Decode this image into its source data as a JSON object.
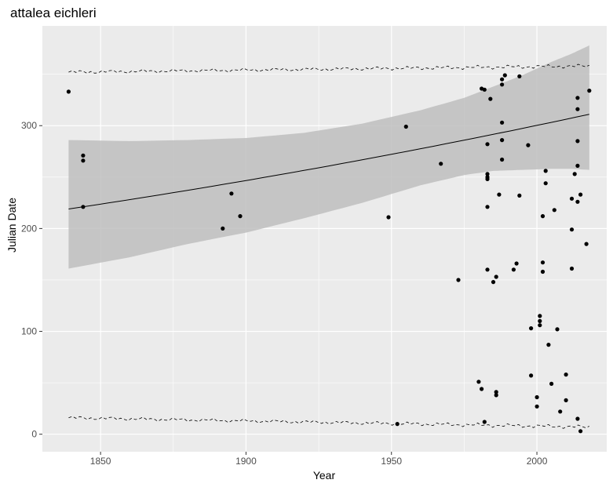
{
  "chart_data": {
    "type": "scatter",
    "title": "attalea eichleri",
    "xlabel": "Year",
    "ylabel": "Julian Date",
    "xlim": [
      1830,
      2024
    ],
    "ylim": [
      -17,
      397
    ],
    "x_ticks": [
      1850,
      1900,
      1950,
      2000
    ],
    "y_ticks": [
      0,
      100,
      200,
      300
    ],
    "grid": true,
    "legend": "none",
    "colors": {
      "panel": "#ebebeb",
      "grid": "#ffffff",
      "points": "#000000",
      "ribbon": "#bebebe",
      "tick_text": "#4d4d4d"
    },
    "points": [
      [
        1839,
        333
      ],
      [
        1844,
        271
      ],
      [
        1844,
        266
      ],
      [
        1844,
        221
      ],
      [
        1892,
        200
      ],
      [
        1895,
        234
      ],
      [
        1898,
        212
      ],
      [
        1949,
        211
      ],
      [
        1952,
        10
      ],
      [
        1955,
        299
      ],
      [
        1967,
        263
      ],
      [
        1973,
        150
      ],
      [
        1980,
        51
      ],
      [
        1981,
        44
      ],
      [
        1981,
        336
      ],
      [
        1982,
        335
      ],
      [
        1982,
        12
      ],
      [
        1983,
        282
      ],
      [
        1983,
        221
      ],
      [
        1983,
        253
      ],
      [
        1983,
        250
      ],
      [
        1983,
        248
      ],
      [
        1983,
        160
      ],
      [
        1984,
        326
      ],
      [
        1985,
        148
      ],
      [
        1986,
        153
      ],
      [
        1986,
        41
      ],
      [
        1986,
        38
      ],
      [
        1987,
        233
      ],
      [
        1988,
        340
      ],
      [
        1988,
        345
      ],
      [
        1988,
        303
      ],
      [
        1988,
        286
      ],
      [
        1988,
        267
      ],
      [
        1989,
        349
      ],
      [
        1992,
        160
      ],
      [
        1993,
        166
      ],
      [
        1994,
        348
      ],
      [
        1994,
        232
      ],
      [
        1997,
        281
      ],
      [
        1998,
        57
      ],
      [
        1998,
        103
      ],
      [
        2000,
        36
      ],
      [
        2000,
        27
      ],
      [
        2001,
        115
      ],
      [
        2001,
        110
      ],
      [
        2001,
        106
      ],
      [
        2002,
        167
      ],
      [
        2002,
        158
      ],
      [
        2002,
        212
      ],
      [
        2003,
        256
      ],
      [
        2003,
        244
      ],
      [
        2004,
        87
      ],
      [
        2005,
        49
      ],
      [
        2006,
        218
      ],
      [
        2007,
        102
      ],
      [
        2008,
        22
      ],
      [
        2010,
        58
      ],
      [
        2010,
        33
      ],
      [
        2012,
        229
      ],
      [
        2012,
        199
      ],
      [
        2012,
        161
      ],
      [
        2013,
        253
      ],
      [
        2014,
        327
      ],
      [
        2014,
        316
      ],
      [
        2014,
        285
      ],
      [
        2014,
        261
      ],
      [
        2014,
        226
      ],
      [
        2014,
        15
      ],
      [
        2015,
        233
      ],
      [
        2015,
        3
      ],
      [
        2017,
        185
      ],
      [
        2018,
        334
      ]
    ],
    "fit_line": {
      "x": [
        1839,
        2018
      ],
      "y": [
        219,
        311
      ]
    },
    "ribbon_upper": {
      "x": [
        1839,
        1860,
        1880,
        1900,
        1920,
        1940,
        1960,
        1975,
        1985,
        1995,
        2005,
        2012,
        2018
      ],
      "y": [
        286,
        285,
        286,
        288,
        293,
        302,
        315,
        327,
        338,
        349,
        362,
        370,
        378
      ]
    },
    "ribbon_lower": {
      "x": [
        1839,
        1860,
        1880,
        1900,
        1920,
        1940,
        1960,
        1975,
        1985,
        1995,
        2005,
        2012,
        2018
      ],
      "y": [
        161,
        172,
        185,
        196,
        210,
        225,
        242,
        252,
        256,
        257,
        258,
        258,
        257
      ]
    },
    "upper_dashed": {
      "x": [
        1839,
        2018
      ],
      "y": [
        352,
        358
      ]
    },
    "lower_dashed": {
      "x": [
        1839,
        2018
      ],
      "y": [
        16,
        7
      ]
    }
  }
}
